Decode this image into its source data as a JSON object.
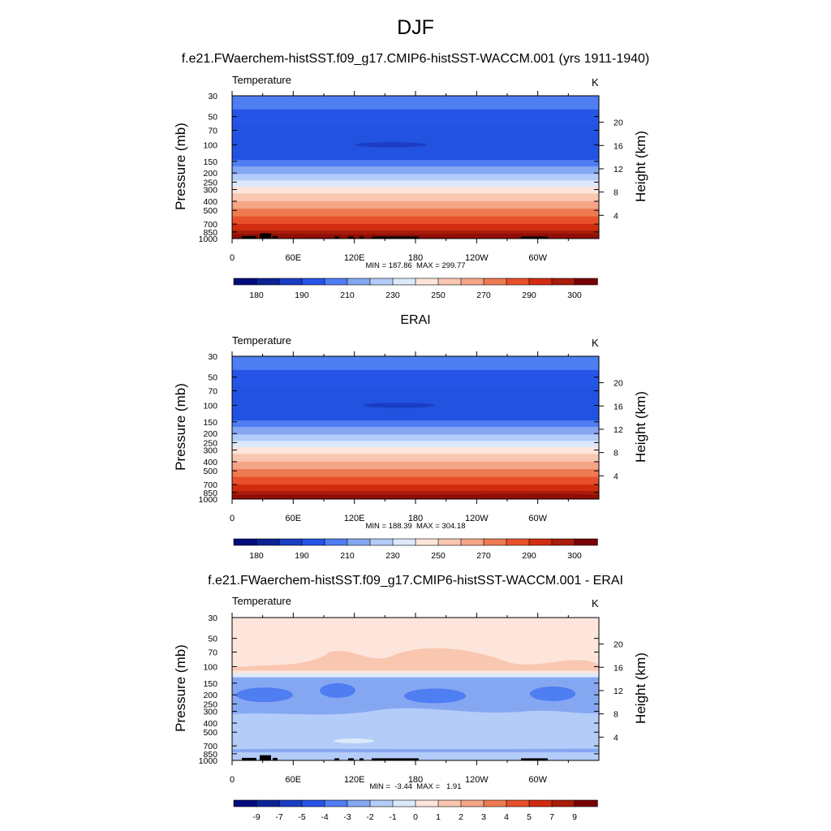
{
  "page": {
    "title": "DJF"
  },
  "colors": {
    "temperature_levels": [
      "#000b7c",
      "#0c2396",
      "#1a3dc4",
      "#2654e6",
      "#4f7df2",
      "#85a7f2",
      "#b3ccf8",
      "#dbe9fb",
      "#fde5db",
      "#f9c6b0",
      "#f4a585",
      "#ee7a52",
      "#e7502b",
      "#d12c10",
      "#a91c0a",
      "#780006"
    ],
    "difference_levels": [
      "#000b7c",
      "#0c2396",
      "#1a3dc4",
      "#2654e6",
      "#4f7df2",
      "#85a7f2",
      "#b3ccf8",
      "#dbe9fb",
      "#fde5db",
      "#f9c6b0",
      "#f4a585",
      "#ee7a52",
      "#e7502b",
      "#d12c10",
      "#a91c0a",
      "#780006"
    ]
  },
  "panels": [
    {
      "title": "f.e21.FWaerchem-histSST.f09_g17.CMIP6-histSST-WACCM.001 (yrs 1911-1940)",
      "variable": "Temperature",
      "units": "K",
      "stats": "MIN = 187.86  MAX = 299.77",
      "ylabel_left": "Pressure (mb)",
      "ylabel_right": "Height (km)"
    },
    {
      "title": "ERAI",
      "variable": "Temperature",
      "units": "K",
      "stats": "MIN = 188.39  MAX = 304.18",
      "ylabel_left": "Pressure (mb)",
      "ylabel_right": "Height (km)"
    },
    {
      "title": "f.e21.FWaerchem-histSST.f09_g17.CMIP6-histSST-WACCM.001 - ERAI",
      "variable": "Temperature",
      "units": "K",
      "stats": "MIN =  -3.44  MAX =   1.91",
      "ylabel_left": "Pressure (mb)",
      "ylabel_right": "Height (km)"
    }
  ],
  "chart_data": [
    {
      "type": "heatmap",
      "title": "f.e21.FWaerchem-histSST.f09_g17.CMIP6-histSST-WACCM.001 (yrs 1911-1940)",
      "xlabel": "",
      "ylabel": "Pressure (mb)",
      "y2label": "Height (km)",
      "x_ticks": [
        "0",
        "60E",
        "120E",
        "180",
        "120W",
        "60W"
      ],
      "y_ticks": [
        "30",
        "50",
        "70",
        "100",
        "150",
        "200",
        "250",
        "300",
        "400",
        "500",
        "700",
        "850",
        "1000"
      ],
      "y2_ticks": [
        "20",
        "16",
        "12",
        "8",
        "4"
      ],
      "colorbar_labels": [
        "180",
        "190",
        "210",
        "230",
        "250",
        "270",
        "290",
        "300"
      ],
      "stats": {
        "min": 187.86,
        "max": 299.77
      }
    },
    {
      "type": "heatmap",
      "title": "ERAI",
      "xlabel": "",
      "ylabel": "Pressure (mb)",
      "y2label": "Height (km)",
      "x_ticks": [
        "0",
        "60E",
        "120E",
        "180",
        "120W",
        "60W"
      ],
      "y_ticks": [
        "30",
        "50",
        "70",
        "100",
        "150",
        "200",
        "250",
        "300",
        "400",
        "500",
        "700",
        "850",
        "1000"
      ],
      "y2_ticks": [
        "20",
        "16",
        "12",
        "8",
        "4"
      ],
      "colorbar_labels": [
        "180",
        "190",
        "210",
        "230",
        "250",
        "270",
        "290",
        "300"
      ],
      "stats": {
        "min": 188.39,
        "max": 304.18
      }
    },
    {
      "type": "heatmap",
      "title": "f.e21.FWaerchem-histSST.f09_g17.CMIP6-histSST-WACCM.001 - ERAI",
      "xlabel": "",
      "ylabel": "Pressure (mb)",
      "y2label": "Height (km)",
      "x_ticks": [
        "0",
        "60E",
        "120E",
        "180",
        "120W",
        "60W"
      ],
      "y_ticks": [
        "30",
        "50",
        "70",
        "100",
        "150",
        "200",
        "250",
        "300",
        "400",
        "500",
        "700",
        "850",
        "1000"
      ],
      "y2_ticks": [
        "20",
        "16",
        "12",
        "8",
        "4"
      ],
      "colorbar_labels": [
        "-9",
        "-7",
        "-5",
        "-4",
        "-3",
        "-2",
        "-1",
        "0",
        "1",
        "2",
        "3",
        "4",
        "5",
        "7",
        "9"
      ],
      "stats": {
        "min": -3.44,
        "max": 1.91
      }
    }
  ]
}
